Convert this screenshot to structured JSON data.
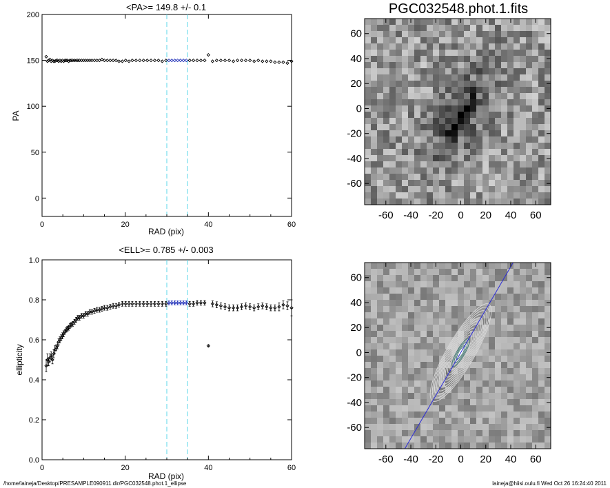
{
  "colors": {
    "axis": "#000000",
    "marker": "#000000",
    "highlight": "#1f2fb8",
    "guide_cyan": "#5ad7e8",
    "fit_line": "#2a2ad8",
    "contour": "#d8d8d8",
    "contour_inner": "#4a7f7a"
  },
  "footer": {
    "left": "/home/laineja/Desktop/PRESAMPLE090911.dir/PGC032548.phot.1_ellipse",
    "right": "laineja@hiisi.oulu.fi  Wed Oct 26 16:24:40 2011"
  },
  "chart_data": [
    {
      "id": "pa_profile",
      "type": "scatter",
      "title": "<PA>= 149.8 +/-   0.1",
      "xlabel": "RAD (pix)",
      "ylabel": "PA",
      "xlim": [
        0,
        60
      ],
      "ylim": [
        -20,
        200
      ],
      "xticks": [
        0,
        20,
        40,
        60
      ],
      "yticks": [
        0,
        50,
        100,
        150,
        200
      ],
      "guides": [
        30,
        35
      ],
      "highlight_range": [
        30,
        35
      ],
      "series": [
        {
          "x": [
            1.0,
            1.3,
            1.6,
            1.9,
            2.2,
            2.5,
            2.8,
            3.1,
            3.4,
            3.7,
            4.0,
            4.3,
            4.6,
            4.9,
            5.2,
            5.5,
            5.8,
            6.1,
            6.4,
            6.7,
            7.0,
            7.4,
            7.8,
            8.2,
            8.6,
            9.0,
            9.5,
            10.0,
            10.5,
            11.0,
            11.5,
            12.0,
            12.6,
            13.2,
            13.8,
            14.4,
            15.0,
            15.7,
            16.4,
            17.1,
            17.8,
            18.5,
            19.3,
            20.1,
            20.9,
            21.7,
            22.6,
            23.5,
            24.4,
            25.3,
            26.2,
            27.1,
            28.0,
            28.9,
            29.8,
            30.5,
            31.2,
            31.9,
            32.6,
            33.3,
            34.0,
            34.7,
            35.5,
            36.4,
            37.3,
            38.2,
            39.1,
            40.0,
            41.0,
            42.0,
            43.0,
            44.0,
            45.0,
            46.0,
            47.0,
            48.0,
            49.0,
            50.0,
            51.0,
            52.0,
            53.0,
            54.0,
            55.0,
            56.0,
            57.0,
            58.0,
            59.0,
            60.0
          ],
          "y": [
            154,
            149,
            150,
            151,
            149,
            150,
            149,
            149,
            150,
            150,
            149,
            150,
            149,
            150,
            149,
            150,
            150,
            150,
            149,
            150,
            150,
            150,
            150,
            150,
            150,
            150,
            150,
            150,
            150,
            150,
            150,
            150,
            150,
            150,
            150,
            151,
            150,
            150,
            150,
            150,
            150,
            149,
            149,
            150,
            149,
            150,
            150,
            150,
            150,
            150,
            150,
            150,
            150,
            149,
            150,
            150,
            150,
            150,
            150,
            150,
            150,
            150,
            150,
            150,
            150,
            150,
            150,
            156,
            149,
            150,
            150,
            150,
            150,
            149,
            150,
            150,
            150,
            150,
            149,
            150,
            149,
            149,
            149,
            148,
            148,
            148,
            147,
            149
          ]
        }
      ]
    },
    {
      "id": "ell_profile",
      "type": "scatter",
      "title": "<ELL>= 0.785 +/-  0.003",
      "xlabel": "RAD (pix)",
      "ylabel": "ellipticity",
      "xlim": [
        0,
        60
      ],
      "ylim": [
        0,
        1
      ],
      "xticks": [
        0,
        20,
        40,
        60
      ],
      "yticks": [
        0.0,
        0.2,
        0.4,
        0.6,
        0.8,
        1.0
      ],
      "guides": [
        30,
        35
      ],
      "highlight_range": [
        30,
        35
      ],
      "series": [
        {
          "x": [
            1.0,
            1.3,
            1.6,
            1.9,
            2.2,
            2.5,
            2.8,
            3.1,
            3.4,
            3.7,
            4.0,
            4.3,
            4.6,
            4.9,
            5.2,
            5.5,
            5.8,
            6.1,
            6.4,
            6.7,
            7.0,
            7.4,
            7.8,
            8.2,
            8.6,
            9.0,
            9.5,
            10.0,
            10.5,
            11.0,
            11.5,
            12.0,
            12.6,
            13.2,
            13.8,
            14.4,
            15.0,
            15.7,
            16.4,
            17.1,
            17.8,
            18.5,
            19.3,
            20.1,
            20.9,
            21.7,
            22.6,
            23.5,
            24.4,
            25.3,
            26.2,
            27.1,
            28.0,
            28.9,
            29.8,
            30.5,
            31.2,
            31.9,
            32.6,
            33.3,
            34.0,
            34.7,
            35.5,
            36.4,
            37.3,
            38.2,
            39.1,
            40.0,
            41.0,
            42.0,
            43.0,
            44.0,
            45.0,
            46.0,
            47.0,
            48.0,
            49.0,
            50.0,
            51.0,
            52.0,
            53.0,
            54.0,
            55.0,
            56.0,
            57.0,
            58.0,
            59.0,
            60.0
          ],
          "y": [
            0.47,
            0.5,
            0.49,
            0.51,
            0.52,
            0.5,
            0.53,
            0.55,
            0.56,
            0.57,
            0.59,
            0.6,
            0.61,
            0.62,
            0.63,
            0.64,
            0.65,
            0.655,
            0.66,
            0.67,
            0.675,
            0.68,
            0.69,
            0.7,
            0.71,
            0.71,
            0.72,
            0.72,
            0.73,
            0.73,
            0.74,
            0.74,
            0.745,
            0.75,
            0.75,
            0.755,
            0.76,
            0.76,
            0.765,
            0.77,
            0.77,
            0.775,
            0.78,
            0.78,
            0.78,
            0.78,
            0.78,
            0.78,
            0.78,
            0.78,
            0.78,
            0.78,
            0.78,
            0.78,
            0.78,
            0.785,
            0.785,
            0.785,
            0.785,
            0.785,
            0.785,
            0.785,
            0.78,
            0.78,
            0.785,
            0.785,
            0.785,
            0.57,
            0.78,
            0.775,
            0.77,
            0.765,
            0.76,
            0.76,
            0.76,
            0.765,
            0.77,
            0.765,
            0.76,
            0.765,
            0.77,
            0.765,
            0.76,
            0.76,
            0.765,
            0.775,
            0.77,
            0.76
          ],
          "err": [
            0.03,
            0.03,
            0.02,
            0.02,
            0.02,
            0.02,
            0.02,
            0.02,
            0.015,
            0.015,
            0.015,
            0.015,
            0.015,
            0.015,
            0.015,
            0.012,
            0.012,
            0.012,
            0.012,
            0.012,
            0.012,
            0.012,
            0.012,
            0.012,
            0.012,
            0.012,
            0.012,
            0.012,
            0.012,
            0.012,
            0.012,
            0.012,
            0.012,
            0.012,
            0.012,
            0.012,
            0.012,
            0.012,
            0.012,
            0.012,
            0.012,
            0.012,
            0.012,
            0.012,
            0.012,
            0.012,
            0.012,
            0.012,
            0.012,
            0.012,
            0.012,
            0.012,
            0.012,
            0.012,
            0.012,
            0.01,
            0.01,
            0.01,
            0.01,
            0.01,
            0.01,
            0.01,
            0.012,
            0.012,
            0.012,
            0.012,
            0.012,
            0.005,
            0.015,
            0.015,
            0.015,
            0.015,
            0.015,
            0.015,
            0.015,
            0.015,
            0.015,
            0.015,
            0.015,
            0.015,
            0.015,
            0.015,
            0.015,
            0.015,
            0.02,
            0.02,
            0.02,
            0.04
          ]
        }
      ]
    },
    {
      "id": "image_raw",
      "type": "heatmap",
      "title": "PGC032548.phot.1.fits",
      "xlim": [
        -77,
        72
      ],
      "ylim": [
        -77,
        72
      ],
      "xticks": [
        -60,
        -40,
        -20,
        0,
        20,
        40,
        60
      ],
      "yticks": [
        -60,
        -40,
        -20,
        0,
        20,
        40,
        60
      ],
      "galaxy": {
        "pa_deg": 149.8,
        "ellipticity": 0.785
      },
      "grid_cells": 30
    },
    {
      "id": "image_model",
      "type": "heatmap",
      "title": "",
      "xlim": [
        -77,
        72
      ],
      "ylim": [
        -77,
        72
      ],
      "xticks": [
        -60,
        -40,
        -20,
        0,
        20,
        40,
        60
      ],
      "yticks": [
        -60,
        -40,
        -20,
        0,
        20,
        40,
        60
      ],
      "galaxy": {
        "pa_deg": 149.8,
        "ellipticity": 0.785
      },
      "grid_cells": 30,
      "contours": 14
    }
  ]
}
